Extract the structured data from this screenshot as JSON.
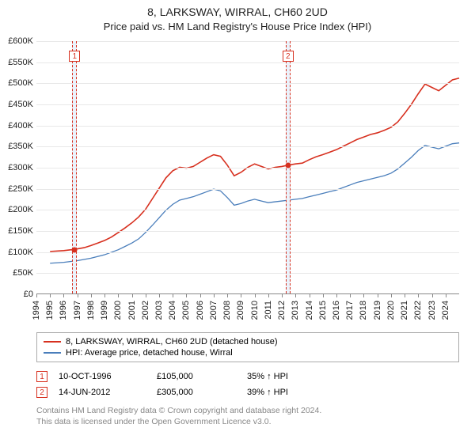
{
  "title": "8, LARKSWAY, WIRRAL, CH60 2UD",
  "subtitle": "Price paid vs. HM Land Registry's House Price Index (HPI)",
  "chart": {
    "type": "line",
    "background_color": "#ffffff",
    "grid_color": "#e8e8e8",
    "axis_color": "#888888",
    "tick_fontsize": 11,
    "title_fontsize": 14,
    "ylim": [
      0,
      600000
    ],
    "ytick_step": 50000,
    "y_tick_labels": [
      "£0",
      "£50K",
      "£100K",
      "£150K",
      "£200K",
      "£250K",
      "£300K",
      "£350K",
      "£400K",
      "£450K",
      "£500K",
      "£550K",
      "£600K"
    ],
    "xlim": [
      1994,
      2025
    ],
    "x_labels": [
      "1994",
      "1995",
      "1996",
      "1997",
      "1998",
      "1999",
      "2000",
      "2001",
      "2002",
      "2003",
      "2004",
      "2005",
      "2006",
      "2007",
      "2008",
      "2009",
      "2010",
      "2011",
      "2012",
      "2013",
      "2014",
      "2015",
      "2016",
      "2017",
      "2018",
      "2019",
      "2020",
      "2021",
      "2022",
      "2023",
      "2024"
    ],
    "markers": [
      {
        "n": "1",
        "color": "#d7301f",
        "x": 1996.8,
        "y": 105000,
        "band_width_years": 0.35
      },
      {
        "n": "2",
        "color": "#d7301f",
        "x": 2012.45,
        "y": 305000,
        "band_width_years": 0.35
      }
    ],
    "band_fill": "#eaf2fb",
    "series": [
      {
        "name": "8, LARKSWAY, WIRRAL, CH60 2UD (detached house)",
        "color": "#d7301f",
        "line_width": 1.6,
        "data": [
          [
            1995.0,
            100000
          ],
          [
            1996.0,
            102000
          ],
          [
            1996.8,
            105000
          ],
          [
            1997.5,
            109000
          ],
          [
            1998.0,
            114000
          ],
          [
            1998.5,
            120000
          ],
          [
            1999.0,
            126000
          ],
          [
            1999.5,
            134000
          ],
          [
            2000.0,
            145000
          ],
          [
            2000.5,
            156000
          ],
          [
            2001.0,
            168000
          ],
          [
            2001.5,
            182000
          ],
          [
            2002.0,
            200000
          ],
          [
            2002.5,
            225000
          ],
          [
            2003.0,
            250000
          ],
          [
            2003.5,
            275000
          ],
          [
            2004.0,
            292000
          ],
          [
            2004.5,
            300000
          ],
          [
            2005.0,
            298000
          ],
          [
            2005.5,
            302000
          ],
          [
            2006.0,
            312000
          ],
          [
            2006.5,
            322000
          ],
          [
            2007.0,
            330000
          ],
          [
            2007.5,
            326000
          ],
          [
            2008.0,
            305000
          ],
          [
            2008.5,
            280000
          ],
          [
            2009.0,
            288000
          ],
          [
            2009.5,
            300000
          ],
          [
            2010.0,
            308000
          ],
          [
            2010.5,
            302000
          ],
          [
            2011.0,
            296000
          ],
          [
            2011.5,
            300000
          ],
          [
            2012.0,
            302000
          ],
          [
            2012.45,
            305000
          ],
          [
            2013.0,
            308000
          ],
          [
            2013.5,
            310000
          ],
          [
            2014.0,
            318000
          ],
          [
            2014.5,
            325000
          ],
          [
            2015.0,
            330000
          ],
          [
            2015.5,
            336000
          ],
          [
            2016.0,
            342000
          ],
          [
            2016.5,
            350000
          ],
          [
            2017.0,
            358000
          ],
          [
            2017.5,
            366000
          ],
          [
            2018.0,
            372000
          ],
          [
            2018.5,
            378000
          ],
          [
            2019.0,
            382000
          ],
          [
            2019.5,
            388000
          ],
          [
            2020.0,
            395000
          ],
          [
            2020.5,
            408000
          ],
          [
            2021.0,
            428000
          ],
          [
            2021.5,
            450000
          ],
          [
            2022.0,
            475000
          ],
          [
            2022.5,
            498000
          ],
          [
            2023.0,
            490000
          ],
          [
            2023.5,
            482000
          ],
          [
            2024.0,
            495000
          ],
          [
            2024.5,
            508000
          ],
          [
            2025.0,
            512000
          ]
        ]
      },
      {
        "name": "HPI: Average price, detached house, Wirral",
        "color": "#4a7ebb",
        "line_width": 1.3,
        "data": [
          [
            1995.0,
            72000
          ],
          [
            1996.0,
            74000
          ],
          [
            1997.0,
            78000
          ],
          [
            1998.0,
            84000
          ],
          [
            1999.0,
            92000
          ],
          [
            2000.0,
            104000
          ],
          [
            2000.5,
            112000
          ],
          [
            2001.0,
            120000
          ],
          [
            2001.5,
            130000
          ],
          [
            2002.0,
            145000
          ],
          [
            2002.5,
            162000
          ],
          [
            2003.0,
            180000
          ],
          [
            2003.5,
            198000
          ],
          [
            2004.0,
            212000
          ],
          [
            2004.5,
            222000
          ],
          [
            2005.0,
            226000
          ],
          [
            2005.5,
            230000
          ],
          [
            2006.0,
            236000
          ],
          [
            2006.5,
            242000
          ],
          [
            2007.0,
            248000
          ],
          [
            2007.5,
            244000
          ],
          [
            2008.0,
            228000
          ],
          [
            2008.5,
            210000
          ],
          [
            2009.0,
            214000
          ],
          [
            2009.5,
            220000
          ],
          [
            2010.0,
            224000
          ],
          [
            2010.5,
            220000
          ],
          [
            2011.0,
            216000
          ],
          [
            2011.5,
            218000
          ],
          [
            2012.0,
            220000
          ],
          [
            2012.5,
            222000
          ],
          [
            2013.0,
            224000
          ],
          [
            2013.5,
            226000
          ],
          [
            2014.0,
            230000
          ],
          [
            2014.5,
            234000
          ],
          [
            2015.0,
            238000
          ],
          [
            2015.5,
            242000
          ],
          [
            2016.0,
            246000
          ],
          [
            2016.5,
            252000
          ],
          [
            2017.0,
            258000
          ],
          [
            2017.5,
            264000
          ],
          [
            2018.0,
            268000
          ],
          [
            2018.5,
            272000
          ],
          [
            2019.0,
            276000
          ],
          [
            2019.5,
            280000
          ],
          [
            2020.0,
            286000
          ],
          [
            2020.5,
            296000
          ],
          [
            2021.0,
            310000
          ],
          [
            2021.5,
            324000
          ],
          [
            2022.0,
            340000
          ],
          [
            2022.5,
            352000
          ],
          [
            2023.0,
            348000
          ],
          [
            2023.5,
            344000
          ],
          [
            2024.0,
            350000
          ],
          [
            2024.5,
            356000
          ],
          [
            2025.0,
            358000
          ]
        ]
      }
    ]
  },
  "legend": {
    "items": [
      {
        "label": "8, LARKSWAY, WIRRAL, CH60 2UD (detached house)",
        "color": "#d7301f"
      },
      {
        "label": "HPI: Average price, detached house, Wirral",
        "color": "#4a7ebb"
      }
    ]
  },
  "transactions": [
    {
      "n": "1",
      "color": "#d7301f",
      "date": "10-OCT-1996",
      "price": "£105,000",
      "pct": "35% ↑ HPI"
    },
    {
      "n": "2",
      "color": "#d7301f",
      "date": "14-JUN-2012",
      "price": "£305,000",
      "pct": "39% ↑ HPI"
    }
  ],
  "attribution_line1": "Contains HM Land Registry data © Crown copyright and database right 2024.",
  "attribution_line2": "This data is licensed under the Open Government Licence v3.0."
}
